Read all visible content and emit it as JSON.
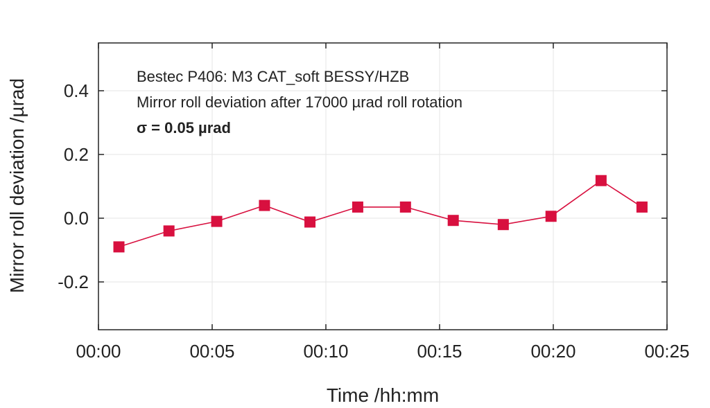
{
  "chart_data": {
    "type": "line",
    "title": "",
    "xlabel": "Time /hh:mm",
    "ylabel": "Mirror roll deviation /µrad",
    "xlim_minutes": [
      0,
      25
    ],
    "ylim": [
      -0.35,
      0.55
    ],
    "x_ticks": [
      "00:00",
      "00:05",
      "00:10",
      "00:15",
      "00:20",
      "00:25"
    ],
    "y_ticks": [
      "0.4",
      "0.2",
      "0.0",
      "-0.2"
    ],
    "grid": true,
    "series": [
      {
        "x_minutes": [
          0.9,
          3.1,
          5.2,
          7.3,
          9.3,
          11.4,
          13.5,
          15.6,
          17.8,
          19.9,
          22.1,
          23.9
        ],
        "values": [
          -0.09,
          -0.04,
          -0.01,
          0.04,
          -0.012,
          0.035,
          0.035,
          -0.007,
          -0.02,
          0.006,
          0.118,
          0.035
        ],
        "color": "#d8103f"
      }
    ],
    "annotations": [
      "Bestec P406: M3 CAT_soft BESSY/HZB",
      "Mirror roll deviation after 17000 µrad roll rotation",
      "σ = 0.05 µrad"
    ]
  }
}
